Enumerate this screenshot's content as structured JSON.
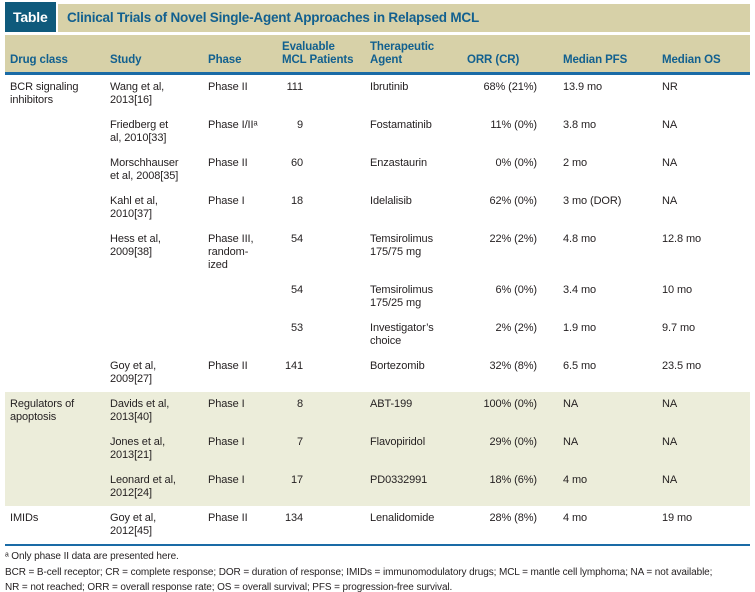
{
  "header": {
    "chip_label": "Table",
    "title": "Clinical Trials of Novel Single-Agent Approaches in Relapsed MCL"
  },
  "table": {
    "columns": [
      {
        "key": "drug_class",
        "label": "Drug class"
      },
      {
        "key": "study",
        "label": "Study"
      },
      {
        "key": "phase",
        "label": "Phase"
      },
      {
        "key": "patients",
        "label": "Evaluable\nMCL Patients"
      },
      {
        "key": "agent",
        "label": "Therapeutic\nAgent"
      },
      {
        "key": "orr",
        "label": "ORR (CR)"
      },
      {
        "key": "pfs",
        "label": "Median PFS"
      },
      {
        "key": "os",
        "label": "Median OS"
      }
    ],
    "rows": [
      {
        "group": 1,
        "drug_class": "BCR signaling\ninhibitors",
        "study": "Wang et al,\n2013[16]",
        "phase": "Phase II",
        "patients": "111",
        "agent": "Ibrutinib",
        "orr": "68% (21%)",
        "pfs": "13.9 mo",
        "os": "NR"
      },
      {
        "group": 1,
        "drug_class": "",
        "study": "Friedberg et\nal, 2010[33]",
        "phase": "Phase I/IIᵃ",
        "patients": "9",
        "agent": "Fostamatinib",
        "orr": "11% (0%)",
        "pfs": "3.8 mo",
        "os": "NA"
      },
      {
        "group": 1,
        "drug_class": "",
        "study": "Morschhauser\net al, 2008[35]",
        "phase": "Phase II",
        "patients": "60",
        "agent": "Enzastaurin",
        "orr": "0% (0%)",
        "pfs": "2 mo",
        "os": "NA"
      },
      {
        "group": 1,
        "drug_class": "",
        "study": "Kahl et al,\n2010[37]",
        "phase": "Phase I",
        "patients": "18",
        "agent": "Idelalisib",
        "orr": "62% (0%)",
        "pfs": "3 mo (DOR)",
        "os": "NA"
      },
      {
        "group": 1,
        "drug_class": "",
        "study": "Hess et al,\n2009[38]",
        "phase": "Phase III,\nrandom-\nized",
        "patients": "54",
        "agent": "Temsirolimus\n175/75 mg",
        "orr": "22% (2%)",
        "pfs": "4.8 mo",
        "os": "12.8 mo"
      },
      {
        "group": 1,
        "drug_class": "",
        "study": "",
        "phase": "",
        "patients": "54",
        "agent": "Temsirolimus\n175/25 mg",
        "orr": "6% (0%)",
        "pfs": "3.4 mo",
        "os": "10 mo"
      },
      {
        "group": 1,
        "drug_class": "",
        "study": "",
        "phase": "",
        "patients": "53",
        "agent": "Investigator’s\nchoice",
        "orr": "2% (2%)",
        "pfs": "1.9 mo",
        "os": "9.7 mo"
      },
      {
        "group": 1,
        "drug_class": "",
        "study": "Goy et al,\n2009[27]",
        "phase": "Phase II",
        "patients": "141",
        "agent": "Bortezomib",
        "orr": "32% (8%)",
        "pfs": "6.5 mo",
        "os": "23.5 mo"
      },
      {
        "group": 2,
        "drug_class": "Regulators of\napoptosis",
        "study": "Davids et al,\n2013[40]",
        "phase": "Phase I",
        "patients": "8",
        "agent": "ABT-199",
        "orr": "100% (0%)",
        "pfs": "NA",
        "os": "NA"
      },
      {
        "group": 2,
        "drug_class": "",
        "study": "Jones et al,\n2013[21]",
        "phase": "Phase I",
        "patients": "7",
        "agent": "Flavopiridol",
        "orr": "29% (0%)",
        "pfs": "NA",
        "os": "NA"
      },
      {
        "group": 2,
        "drug_class": "",
        "study": "Leonard et al,\n2012[24]",
        "phase": "Phase I",
        "patients": "17",
        "agent": "PD0332991",
        "orr": "18% (6%)",
        "pfs": "4 mo",
        "os": "NA"
      },
      {
        "group": 3,
        "drug_class": "IMIDs",
        "study": "Goy et al,\n2012[45]",
        "phase": "Phase II",
        "patients": "134",
        "agent": "Lenalidomide",
        "orr": "28% (8%)",
        "pfs": "4 mo",
        "os": "19 mo"
      }
    ]
  },
  "footnotes": {
    "note_a": "ᵃ Only phase II data are presented here.",
    "abbreviations": "BCR = B-cell receptor; CR = complete response; DOR = duration of response; IMIDs = immunomodulatory drugs; MCL = mantle cell lymphoma; NA = not available;\nNR = not reached; ORR = overall response rate; OS = overall survival; PFS = progression-free survival."
  },
  "colors": {
    "chip_bg": "#0f5a7c",
    "title_text": "#12608f",
    "header_text": "#12608f",
    "tan_bg": "#d7d1a8",
    "olive_bg": "#ecedda",
    "rule_blue": "#1a6ba6",
    "body_text": "#231f20"
  }
}
